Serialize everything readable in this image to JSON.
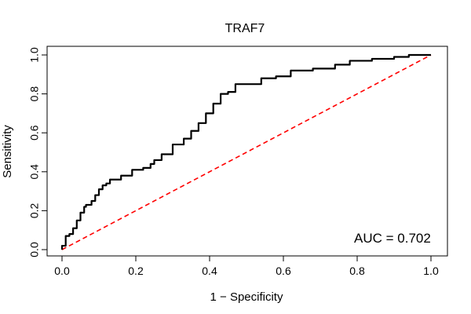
{
  "chart_data": {
    "type": "line",
    "title": "TRAF7",
    "xlabel": "1 − Specificity",
    "ylabel": "Sensitivity",
    "xlim": [
      0.0,
      1.0
    ],
    "ylim": [
      0.0,
      1.0
    ],
    "x_ticks": [
      "0.0",
      "0.2",
      "0.4",
      "0.6",
      "0.8",
      "1.0"
    ],
    "y_ticks": [
      "0.0",
      "0.2",
      "0.4",
      "0.6",
      "0.8",
      "1.0"
    ],
    "annotation": "AUC = 0.702",
    "grid": false,
    "series": [
      {
        "color": "#000000",
        "style": "solid",
        "x": [
          0.0,
          0.01,
          0.02,
          0.03,
          0.04,
          0.05,
          0.06,
          0.065,
          0.08,
          0.09,
          0.1,
          0.11,
          0.12,
          0.13,
          0.16,
          0.19,
          0.22,
          0.24,
          0.25,
          0.27,
          0.3,
          0.33,
          0.35,
          0.37,
          0.39,
          0.41,
          0.43,
          0.45,
          0.47,
          0.5,
          0.54,
          0.58,
          0.62,
          0.68,
          0.74,
          0.78,
          0.84,
          0.9,
          0.94,
          0.99,
          1.0
        ],
        "y": [
          0.0,
          0.02,
          0.07,
          0.08,
          0.11,
          0.15,
          0.19,
          0.22,
          0.23,
          0.25,
          0.28,
          0.31,
          0.33,
          0.34,
          0.36,
          0.38,
          0.41,
          0.42,
          0.44,
          0.46,
          0.49,
          0.54,
          0.57,
          0.61,
          0.65,
          0.7,
          0.75,
          0.8,
          0.81,
          0.85,
          0.85,
          0.88,
          0.89,
          0.92,
          0.93,
          0.95,
          0.97,
          0.98,
          0.99,
          1.0,
          1.0
        ]
      },
      {
        "color": "#ff0000",
        "style": "dashed",
        "x": [
          0.0,
          1.0
        ],
        "y": [
          0.0,
          1.0
        ]
      }
    ]
  }
}
